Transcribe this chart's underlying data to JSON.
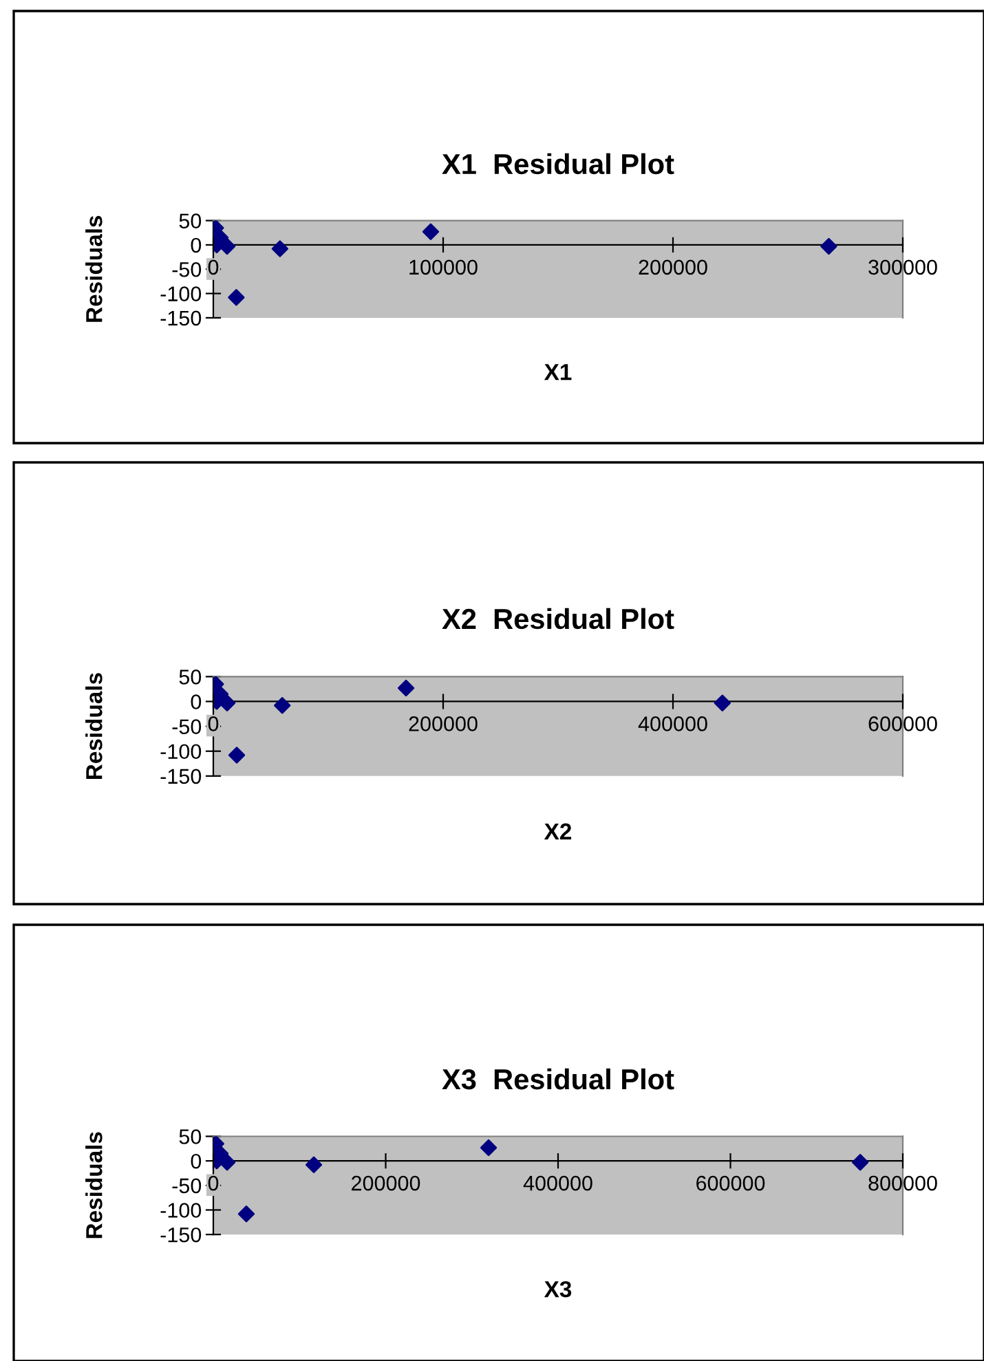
{
  "chart_data": [
    {
      "type": "scatter",
      "title": "X1  Residual Plot",
      "xlabel": "X1",
      "ylabel": "Residuals",
      "marker": "diamond",
      "grid": false,
      "series": [
        {
          "color": "#000080",
          "x": [
            1000,
            1500,
            3000,
            6000,
            10000,
            29000,
            94600,
            267800
          ],
          "values": [
            35,
            0,
            15,
            -3,
            -108,
            -8,
            27,
            -3
          ]
        }
      ],
      "xlim": [
        0,
        300000
      ],
      "ylim": [
        -150,
        50
      ],
      "xticks": [
        0,
        100000,
        200000,
        300000
      ],
      "yticks": [
        -150,
        -100,
        -50,
        0,
        50
      ]
    },
    {
      "type": "scatter",
      "title": "X2  Residual Plot",
      "xlabel": "X2",
      "ylabel": "Residuals",
      "marker": "diamond",
      "grid": false,
      "series": [
        {
          "color": "#000080",
          "x": [
            2000,
            3000,
            6000,
            12000,
            20400,
            60000,
            167700,
            443000
          ],
          "values": [
            35,
            0,
            15,
            -3,
            -108,
            -8,
            27,
            -3
          ]
        }
      ],
      "xlim": [
        0,
        600000
      ],
      "ylim": [
        -150,
        50
      ],
      "xticks": [
        0,
        200000,
        400000,
        600000
      ],
      "yticks": [
        -150,
        -100,
        -50,
        0,
        50
      ]
    },
    {
      "type": "scatter",
      "title": "X3  Residual Plot",
      "xlabel": "X3",
      "ylabel": "Residuals",
      "marker": "diamond",
      "grid": false,
      "series": [
        {
          "color": "#000080",
          "x": [
            3000,
            4000,
            8000,
            16000,
            38300,
            116600,
            319400,
            750600
          ],
          "values": [
            35,
            0,
            15,
            -3,
            -108,
            -8,
            27,
            -3
          ]
        }
      ],
      "xlim": [
        0,
        800000
      ],
      "ylim": [
        -150,
        50
      ],
      "xticks": [
        0,
        200000,
        400000,
        600000,
        800000
      ],
      "yticks": [
        -150,
        -100,
        -50,
        0,
        50
      ]
    }
  ]
}
